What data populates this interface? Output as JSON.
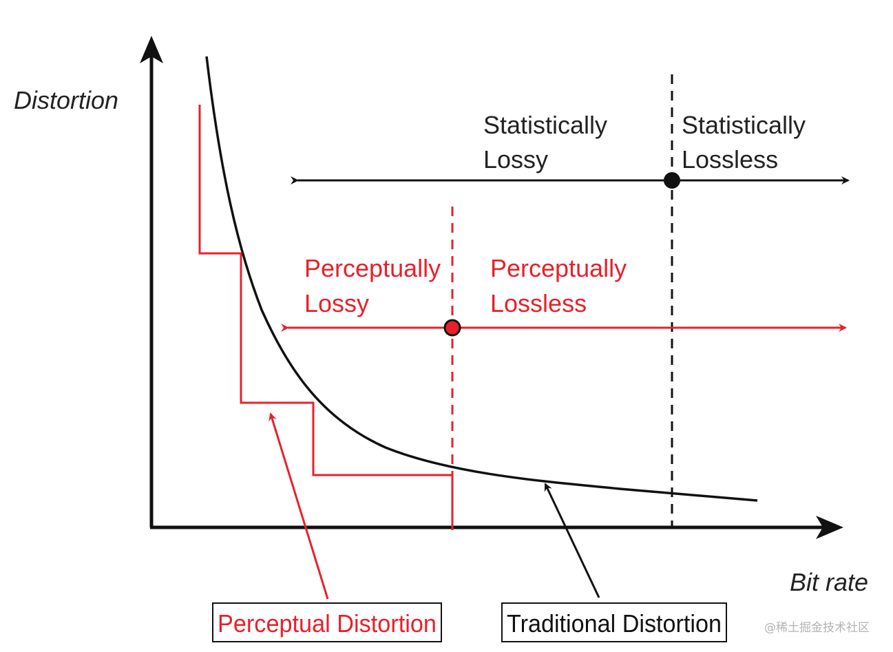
{
  "axes": {
    "y_label": "Distortion",
    "x_label": "Bit rate"
  },
  "regions": {
    "statistically_lossy": [
      "Statistically",
      "Lossy"
    ],
    "statistically_lossless": [
      "Statistically",
      "Lossless"
    ],
    "perceptually_lossy": [
      "Perceptually",
      "Lossy"
    ],
    "perceptually_lossless": [
      "Perceptually",
      "Lossless"
    ]
  },
  "callouts": {
    "perceptual": "Perceptual Distortion",
    "traditional": "Traditional Distortion"
  },
  "watermark": "@稀土掘金技术社区",
  "colors": {
    "statistical": "#111111",
    "perceptual": "#e8202a",
    "perceptual_marker_fill": "#e8202a"
  }
}
